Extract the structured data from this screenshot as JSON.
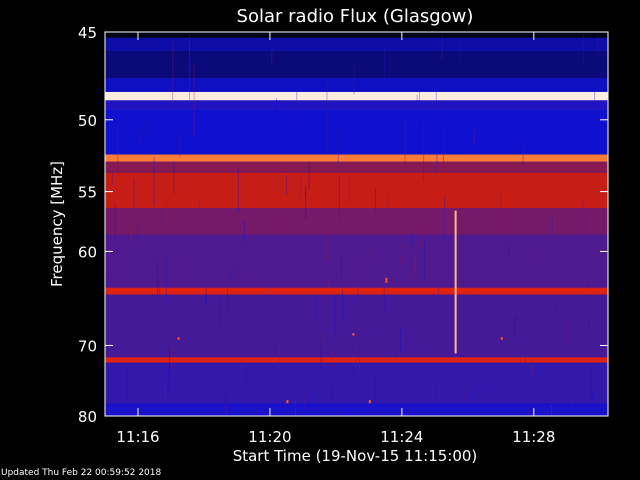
{
  "chart_data": {
    "type": "heatmap",
    "title": "Solar radio Flux (Glasgow)",
    "xlabel": "Start Time (19-Nov-15 11:15:00)",
    "ylabel": "Frequency [MHz]",
    "x_range_minutes": [
      "11:15:00",
      "11:30:15"
    ],
    "y_range_mhz": [
      45,
      80
    ],
    "x_tick_labels": [
      "11:16",
      "11:20",
      "11:24",
      "11:28"
    ],
    "x_ticks_min": [
      1,
      5,
      9,
      13
    ],
    "y_tick_labels": [
      "45",
      "50",
      "55",
      "60",
      "70",
      "80"
    ],
    "y_ticks_mhz": [
      45,
      50,
      55,
      60,
      70,
      80
    ],
    "y_scale": "reciprocal",
    "colormap": [
      "#000000",
      "#0a0a80",
      "#1010d8",
      "#3a1aa0",
      "#6a1a7a",
      "#b01818",
      "#ff2a10",
      "#ff9040",
      "#ffffff"
    ],
    "background_level": 0.38,
    "bands": [
      {
        "freq_mhz": [
          45.0,
          45.3
        ],
        "level": 0.02
      },
      {
        "freq_mhz": [
          45.3,
          46.0
        ],
        "level": 0.18
      },
      {
        "freq_mhz": [
          46.0,
          47.5
        ],
        "level": 0.12
      },
      {
        "freq_mhz": [
          47.5,
          48.3
        ],
        "level": 0.22
      },
      {
        "freq_mhz": [
          48.3,
          48.8
        ],
        "level": 0.98
      },
      {
        "freq_mhz": [
          48.8,
          49.4
        ],
        "level": 0.3
      },
      {
        "freq_mhz": [
          49.4,
          52.3
        ],
        "level": 0.24
      },
      {
        "freq_mhz": [
          52.3,
          52.8
        ],
        "level": 0.85
      },
      {
        "freq_mhz": [
          52.8,
          53.6
        ],
        "level": 0.55
      },
      {
        "freq_mhz": [
          53.6,
          56.3
        ],
        "level": 0.66
      },
      {
        "freq_mhz": [
          56.3,
          58.5
        ],
        "level": 0.52
      },
      {
        "freq_mhz": [
          58.5,
          63.5
        ],
        "level": 0.43
      },
      {
        "freq_mhz": [
          63.5,
          64.2
        ],
        "level": 0.7
      },
      {
        "freq_mhz": [
          64.2,
          71.5
        ],
        "level": 0.4
      },
      {
        "freq_mhz": [
          71.5,
          72.2
        ],
        "level": 0.7
      },
      {
        "freq_mhz": [
          72.2,
          78.0
        ],
        "level": 0.35
      },
      {
        "freq_mhz": [
          78.0,
          80.0
        ],
        "level": 0.28
      }
    ],
    "events": [
      {
        "time_min": 10.6,
        "freq_mhz": [
          56.5,
          71.0
        ],
        "level": 0.92
      },
      {
        "time_min": 8.5,
        "freq_mhz": [
          62.5,
          63.0
        ],
        "level": 0.8
      },
      {
        "time_min": 2.2,
        "freq_mhz": [
          69.0,
          69.3
        ],
        "level": 0.8
      },
      {
        "time_min": 7.5,
        "freq_mhz": [
          68.5,
          68.8
        ],
        "level": 0.8
      },
      {
        "time_min": 12.0,
        "freq_mhz": [
          69.0,
          69.3
        ],
        "level": 0.8
      },
      {
        "time_min": 5.5,
        "freq_mhz": [
          77.5,
          78.0
        ],
        "level": 0.8
      },
      {
        "time_min": 8.0,
        "freq_mhz": [
          77.5,
          78.0
        ],
        "level": 0.8
      }
    ]
  },
  "footer": {
    "updated": "Updated Thu Feb 22 00:59:52 2018"
  }
}
